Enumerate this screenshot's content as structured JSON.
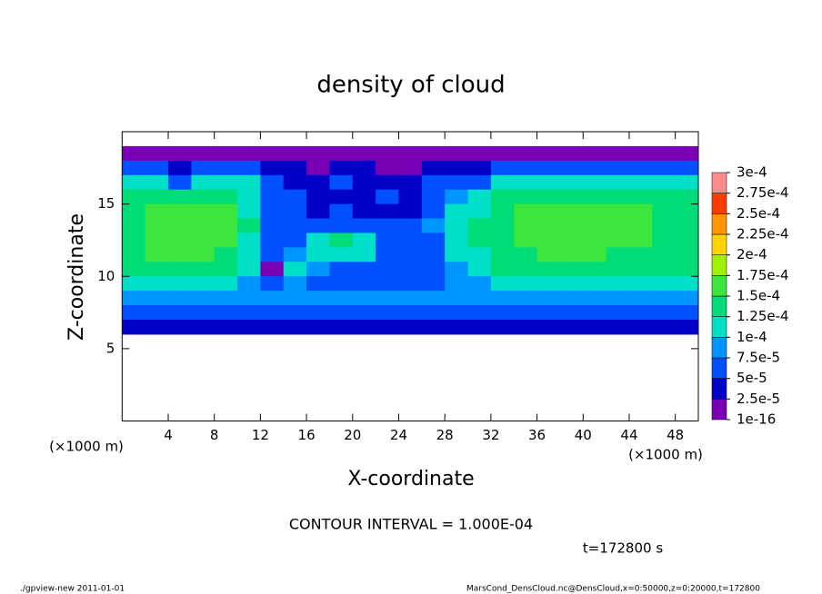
{
  "chart_data": {
    "type": "heatmap",
    "title": "density of cloud",
    "x_label": "X-coordinate",
    "y_label": "Z-coordinate",
    "x_unit": "(×1000 m)",
    "y_unit": "(×1000 m)",
    "contour_note": "CONTOUR INTERVAL = 1.000E-04",
    "time_note": "t=172800 s",
    "footer_left": "./gpview-new  2011-01-01",
    "footer_right": "MarsCond_DensCloud.nc@DensCloud,x=0:50000,z=0:20000,t=172800",
    "xlim": [
      0,
      50
    ],
    "ylim": [
      0,
      20
    ],
    "xticks": [
      4,
      8,
      12,
      16,
      20,
      24,
      28,
      32,
      36,
      40,
      44,
      48
    ],
    "yticks": [
      5,
      10,
      15
    ],
    "x": [
      1,
      3,
      5,
      7,
      9,
      11,
      13,
      15,
      17,
      19,
      21,
      23,
      25,
      27,
      29,
      31,
      33,
      35,
      37,
      39,
      41,
      43,
      45,
      47,
      49
    ],
    "y": [
      18.5,
      17.5,
      16.5,
      15.5,
      14.5,
      13.5,
      12.5,
      11.5,
      10.5,
      9.5,
      8.5,
      7.5,
      6.5
    ],
    "values": [
      [
        1e-05,
        1e-05,
        1e-05,
        1e-05,
        1e-05,
        1e-05,
        1e-05,
        1e-05,
        1e-05,
        1e-05,
        1e-05,
        1e-05,
        1e-05,
        1e-05,
        1e-05,
        1e-05,
        1e-05,
        1e-05,
        1e-05,
        1e-05,
        1e-05,
        1e-05,
        1e-05,
        1e-05,
        1e-05
      ],
      [
        6e-05,
        6e-05,
        3e-05,
        5e-05,
        6e-05,
        6e-05,
        3e-05,
        3e-05,
        2e-05,
        3e-05,
        3e-05,
        2e-05,
        2e-05,
        3e-05,
        3e-05,
        3e-05,
        6e-05,
        6e-05,
        6e-05,
        6e-05,
        5e-05,
        5e-05,
        6e-05,
        6e-05,
        6e-05
      ],
      [
        0.00011,
        0.00011,
        6e-05,
        0.00011,
        0.00011,
        0.0001,
        5e-05,
        4e-05,
        4e-05,
        5e-05,
        4e-05,
        4e-05,
        3e-05,
        5e-05,
        5e-05,
        7e-05,
        0.0001,
        0.00011,
        0.00011,
        0.00011,
        0.00011,
        0.00011,
        0.00011,
        0.00011,
        0.00011
      ],
      [
        0.00013,
        0.00014,
        0.00014,
        0.00014,
        0.00013,
        0.00011,
        6e-05,
        5e-05,
        4e-05,
        4e-05,
        4e-05,
        5e-05,
        4e-05,
        6e-05,
        8e-05,
        0.00011,
        0.00013,
        0.00014,
        0.00014,
        0.00014,
        0.00014,
        0.00014,
        0.00014,
        0.00013,
        0.00013
      ],
      [
        0.00014,
        0.00015,
        0.00016,
        0.00016,
        0.00015,
        0.00012,
        7e-05,
        5e-05,
        4e-05,
        5e-05,
        4e-05,
        4e-05,
        4e-05,
        7e-05,
        0.0001,
        0.00012,
        0.00014,
        0.000155,
        0.00016,
        0.00016,
        0.00016,
        0.000155,
        0.00015,
        0.000145,
        0.00014
      ],
      [
        0.000145,
        0.000155,
        0.00016,
        0.00016,
        0.000155,
        0.00013,
        7e-05,
        6e-05,
        5e-05,
        6e-05,
        5e-05,
        5e-05,
        5e-05,
        8e-05,
        0.00011,
        0.00013,
        0.000145,
        0.000155,
        0.00016,
        0.00016,
        0.00016,
        0.000155,
        0.00015,
        0.000145,
        0.00014
      ],
      [
        0.000145,
        0.000155,
        0.00016,
        0.00016,
        0.00015,
        0.00012,
        6e-05,
        7e-05,
        0.00012,
        0.00013,
        0.00012,
        6e-05,
        5e-05,
        7e-05,
        0.0001,
        0.00013,
        0.000145,
        0.000155,
        0.00016,
        0.00016,
        0.00016,
        0.000155,
        0.00015,
        0.000145,
        0.00014
      ],
      [
        0.00014,
        0.00015,
        0.00015,
        0.00015,
        0.000145,
        0.00011,
        5e-05,
        8e-05,
        0.00011,
        0.00012,
        0.00011,
        7e-05,
        6e-05,
        7e-05,
        0.0001,
        0.00012,
        0.00014,
        0.000145,
        0.00015,
        0.00015,
        0.00015,
        0.000145,
        0.00014,
        0.00014,
        0.000135
      ],
      [
        0.00013,
        0.000135,
        0.00014,
        0.00014,
        0.000135,
        0.0001,
        2e-05,
        0.0001,
        8e-05,
        7e-05,
        6e-05,
        6e-05,
        6e-05,
        6e-05,
        9e-05,
        0.000105,
        0.000125,
        0.00013,
        0.000135,
        0.000135,
        0.000135,
        0.00013,
        0.00013,
        0.00013,
        0.00013
      ],
      [
        0.000115,
        0.00012,
        0.00012,
        0.00012,
        0.000115,
        9e-05,
        6e-05,
        8e-05,
        6e-05,
        5e-05,
        5e-05,
        5e-05,
        5e-05,
        5e-05,
        8e-05,
        8e-05,
        0.000105,
        0.00011,
        0.000115,
        0.000115,
        0.000115,
        0.00011,
        0.00011,
        0.00011,
        0.00011
      ],
      [
        9e-05,
        9e-05,
        9e-05,
        9e-05,
        9e-05,
        9e-05,
        8e-05,
        8e-05,
        8e-05,
        8e-05,
        8e-05,
        8e-05,
        8e-05,
        8e-05,
        8e-05,
        8e-05,
        9e-05,
        9e-05,
        9e-05,
        9e-05,
        9e-05,
        9e-05,
        9e-05,
        9e-05,
        9e-05
      ],
      [
        6e-05,
        6e-05,
        6e-05,
        6e-05,
        6e-05,
        6e-05,
        6e-05,
        6e-05,
        6e-05,
        6e-05,
        6e-05,
        6e-05,
        6e-05,
        6e-05,
        6e-05,
        6e-05,
        6e-05,
        6e-05,
        6e-05,
        6e-05,
        6e-05,
        6e-05,
        6e-05,
        6e-05,
        6e-05
      ],
      [
        3e-05,
        3e-05,
        3e-05,
        3e-05,
        3e-05,
        3e-05,
        3e-05,
        3e-05,
        3e-05,
        3e-05,
        3e-05,
        3e-05,
        3e-05,
        3e-05,
        3e-05,
        3e-05,
        3e-05,
        3e-05,
        3e-05,
        3e-05,
        3e-05,
        3e-05,
        3e-05,
        3e-05,
        3e-05
      ]
    ],
    "levels": [
      {
        "value": 1e-16,
        "label": "1e-16"
      },
      {
        "value": 2.5e-05,
        "label": "2.5e-5"
      },
      {
        "value": 5e-05,
        "label": "5e-5"
      },
      {
        "value": 7.5e-05,
        "label": "7.5e-5"
      },
      {
        "value": 0.0001,
        "label": "1e-4"
      },
      {
        "value": 0.000125,
        "label": "1.25e-4"
      },
      {
        "value": 0.00015,
        "label": "1.5e-4"
      },
      {
        "value": 0.000175,
        "label": "1.75e-4"
      },
      {
        "value": 0.0002,
        "label": "2e-4"
      },
      {
        "value": 0.000225,
        "label": "2.25e-4"
      },
      {
        "value": 0.00025,
        "label": "2.5e-4"
      },
      {
        "value": 0.000275,
        "label": "2.75e-4"
      },
      {
        "value": 0.0003,
        "label": "3e-4"
      }
    ],
    "colors": [
      "#7a00b8",
      "#0000c8",
      "#0050ff",
      "#0096ff",
      "#00e0c8",
      "#00dc78",
      "#3ce63c",
      "#a0f000",
      "#ffd200",
      "#ff9600",
      "#ff3c00",
      "#ff8c8c"
    ]
  }
}
